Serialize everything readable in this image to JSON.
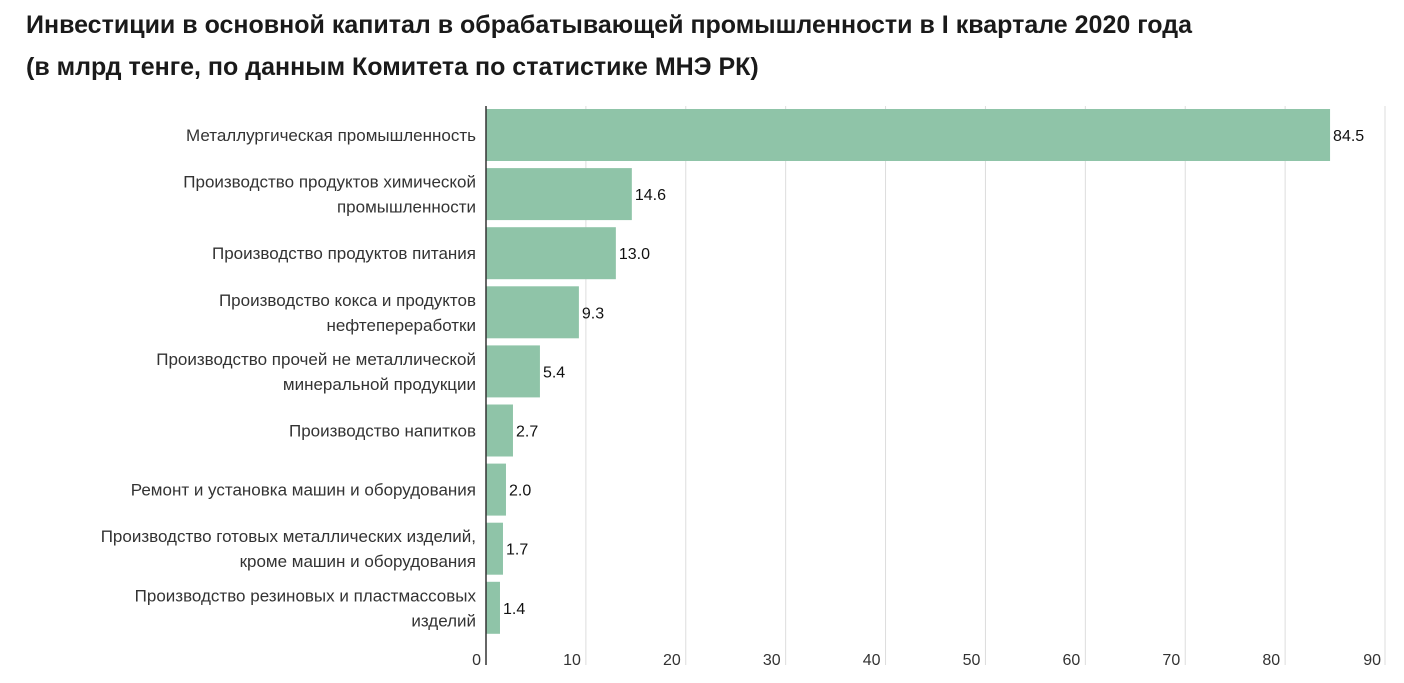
{
  "chart_data": {
    "type": "bar",
    "orientation": "horizontal",
    "title": "Инвестиции в основной капитал в обрабатывающей промышленности в I квартале 2020 года",
    "subtitle": "(в млрд тенге, по данным Комитета по статистике МНЭ РК)",
    "categories": [
      [
        "Металлургическая промышленность"
      ],
      [
        "Производство продуктов химической",
        "промышленности"
      ],
      [
        "Производство продуктов питания"
      ],
      [
        "Производство кокса и продуктов",
        "нефтепереработки"
      ],
      [
        "Производство прочей не металлической",
        "минеральной продукции"
      ],
      [
        "Производство напитков"
      ],
      [
        "Ремонт и установка машин и оборудования"
      ],
      [
        "Производство готовых металлических изделий,",
        "кроме машин и оборудования"
      ],
      [
        "Производство резиновых и пластмассовых",
        "изделий"
      ]
    ],
    "values": [
      84.5,
      14.6,
      13.0,
      9.3,
      5.4,
      2.7,
      2.0,
      1.7,
      1.4
    ],
    "value_labels": [
      "84.5",
      "14.6",
      "13.0",
      "9.3",
      "5.4",
      "2.7",
      "2.0",
      "1.7",
      "1.4"
    ],
    "xlim": [
      0,
      90
    ],
    "xticks": [
      0,
      10,
      20,
      30,
      40,
      50,
      60,
      70,
      80,
      90
    ],
    "grid": "vertical",
    "legend": "none",
    "colors": {
      "bar": "#8fc4a8",
      "grid": "#dddddd",
      "axis": "#333333"
    }
  }
}
